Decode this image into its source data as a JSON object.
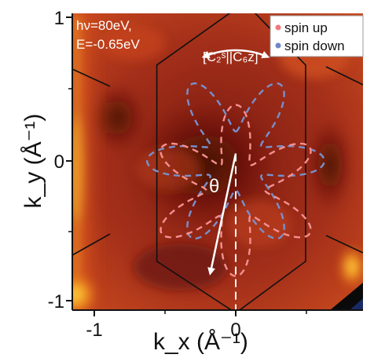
{
  "chart_data": {
    "type": "heatmap",
    "title": "",
    "xlabel": "k_x (Å⁻¹)",
    "ylabel": "k_y (Å⁻¹)",
    "xlim": [
      -1.2,
      1.2
    ],
    "ylim": [
      -1.03,
      1.03
    ],
    "xticks": [
      -1,
      0
    ],
    "yticks": [
      1,
      0,
      -1
    ],
    "colormap": "black-red-orange-yellow",
    "annotations": {
      "photon_energy": "hν=80eV,",
      "energy": "E=-0.65eV",
      "symmetry": "[C₂ˢ||C₆z]",
      "angle": "θ"
    },
    "legend": {
      "placement": "top-right",
      "entries": [
        {
          "label": "spin up",
          "color": "#f07a7a"
        },
        {
          "label": "spin down",
          "color": "#6f86c8"
        }
      ]
    },
    "brillouin_zone": {
      "shape": "hexagon",
      "vertices": [
        [
          0.17,
          1.03
        ],
        [
          0.78,
          0.65
        ],
        [
          0.78,
          -0.68
        ],
        [
          0.0,
          -1.03
        ],
        [
          -0.88,
          -0.68
        ],
        [
          -0.88,
          0.65
        ],
        [
          0.0,
          1.03
        ]
      ]
    },
    "spin_up_star": {
      "center": [
        0.0,
        -0.2
      ],
      "r_in": 0.2,
      "r_out": 0.58,
      "lobes": 6,
      "rotation_deg": 0
    },
    "spin_down_star": {
      "center": [
        0.0,
        0.0
      ],
      "r_in": 0.2,
      "r_out": 0.6,
      "lobes": 6,
      "rotation_deg": 30
    },
    "theta_arrow": {
      "from": [
        0.0,
        0.05
      ],
      "to": [
        -0.28,
        -0.75
      ]
    },
    "rotation_arc": {
      "center": [
        0.0,
        0.2
      ],
      "radius": 0.55,
      "from_deg": 68,
      "to_deg": 112
    },
    "dashed_line": {
      "x": 0.0,
      "y_from": 0.05,
      "y_to": -1.03
    }
  }
}
